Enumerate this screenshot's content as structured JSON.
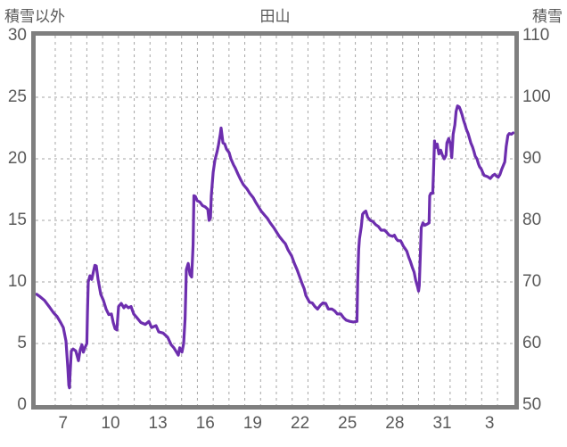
{
  "header": {
    "left_axis_title": "積雪以外",
    "chart_title": "田山",
    "right_axis_title": "積雪"
  },
  "colors": {
    "line": "#6D2EAE",
    "plot_border": "#7f7f7f",
    "gridline": "#a6a6a6",
    "text": "#595959",
    "background": "#ffffff"
  },
  "chart_data": {
    "type": "line",
    "title": "田山",
    "station": "田山",
    "grid": true,
    "x_axis": {
      "unit": "day of month (December into January)",
      "range_days": [
        5.76,
        36.07
      ],
      "day_gridlines_from": 7,
      "day_gridlines_to": 35,
      "tick_labels": [
        "7",
        "10",
        "13",
        "16",
        "19",
        "22",
        "25",
        "28",
        "31",
        "3"
      ],
      "tick_day_positions": [
        7.5,
        10.5,
        13.5,
        16.5,
        19.5,
        22.5,
        25.5,
        28.5,
        31.5,
        34.5
      ]
    },
    "y_axis_left": {
      "title": "積雪以外",
      "min": 0,
      "max": 30,
      "ticks": [
        0,
        5,
        10,
        15,
        20,
        25,
        30
      ]
    },
    "y_axis_right": {
      "title": "積雪",
      "min": 50,
      "max": 110,
      "ticks": [
        50,
        60,
        70,
        80,
        90,
        100,
        110
      ]
    },
    "series": [
      {
        "name": "積雪",
        "axis": "right",
        "color": "#6D2EAE",
        "points": [
          [
            5.82,
            68
          ],
          [
            6.04,
            67.6
          ],
          [
            6.32,
            67
          ],
          [
            6.61,
            66
          ],
          [
            6.89,
            65
          ],
          [
            7.11,
            64.4
          ],
          [
            7.34,
            63.4
          ],
          [
            7.51,
            62.6
          ],
          [
            7.68,
            60.4
          ],
          [
            7.8,
            56
          ],
          [
            7.86,
            53.2
          ],
          [
            7.9,
            52.8
          ],
          [
            7.94,
            55
          ],
          [
            8.02,
            58.8
          ],
          [
            8.13,
            59.1
          ],
          [
            8.3,
            58.8
          ],
          [
            8.47,
            57.2
          ],
          [
            8.58,
            59
          ],
          [
            8.69,
            59.8
          ],
          [
            8.78,
            58.6
          ],
          [
            8.86,
            59.2
          ],
          [
            9.0,
            60
          ],
          [
            9.04,
            65
          ],
          [
            9.09,
            70
          ],
          [
            9.2,
            71
          ],
          [
            9.31,
            70.4
          ],
          [
            9.43,
            71.8
          ],
          [
            9.51,
            72.7
          ],
          [
            9.6,
            72.6
          ],
          [
            9.71,
            70.4
          ],
          [
            9.88,
            68
          ],
          [
            10.05,
            67
          ],
          [
            10.22,
            65.6
          ],
          [
            10.39,
            64.7
          ],
          [
            10.56,
            64.8
          ],
          [
            10.67,
            63.4
          ],
          [
            10.79,
            62.4
          ],
          [
            10.9,
            62.2
          ],
          [
            11.01,
            66
          ],
          [
            11.18,
            66.5
          ],
          [
            11.35,
            65.8
          ],
          [
            11.46,
            66.2
          ],
          [
            11.63,
            65.8
          ],
          [
            11.8,
            66
          ],
          [
            11.97,
            64.8
          ],
          [
            12.2,
            64.1
          ],
          [
            12.42,
            63.4
          ],
          [
            12.7,
            63.1
          ],
          [
            12.93,
            63.6
          ],
          [
            13.1,
            62.6
          ],
          [
            13.38,
            62.9
          ],
          [
            13.55,
            61.9
          ],
          [
            13.83,
            61.7
          ],
          [
            14.12,
            61
          ],
          [
            14.34,
            59.8
          ],
          [
            14.51,
            59.3
          ],
          [
            14.68,
            58.6
          ],
          [
            14.79,
            58.1
          ],
          [
            14.88,
            59.3
          ],
          [
            15.02,
            58.6
          ],
          [
            15.13,
            60
          ],
          [
            15.22,
            64
          ],
          [
            15.27,
            69
          ],
          [
            15.3,
            72
          ],
          [
            15.42,
            73
          ],
          [
            15.53,
            71.2
          ],
          [
            15.64,
            70.8
          ],
          [
            15.73,
            76
          ],
          [
            15.78,
            84
          ],
          [
            15.87,
            83.9
          ],
          [
            15.98,
            83.2
          ],
          [
            16.15,
            83
          ],
          [
            16.32,
            82.4
          ],
          [
            16.49,
            82.2
          ],
          [
            16.66,
            81.8
          ],
          [
            16.74,
            80
          ],
          [
            16.83,
            80.4
          ],
          [
            16.88,
            84
          ],
          [
            17.0,
            87.8
          ],
          [
            17.11,
            89.8
          ],
          [
            17.25,
            91.2
          ],
          [
            17.33,
            92.2
          ],
          [
            17.45,
            94
          ],
          [
            17.5,
            95
          ],
          [
            17.62,
            92.6
          ],
          [
            17.73,
            92.4
          ],
          [
            17.84,
            91.6
          ],
          [
            18.01,
            91
          ],
          [
            18.12,
            90
          ],
          [
            18.29,
            89
          ],
          [
            18.4,
            88.5
          ],
          [
            18.57,
            87.5
          ],
          [
            18.74,
            86.6
          ],
          [
            18.91,
            85.8
          ],
          [
            19.14,
            85.1
          ],
          [
            19.31,
            84.4
          ],
          [
            19.53,
            83.7
          ],
          [
            19.7,
            82.9
          ],
          [
            19.87,
            82.2
          ],
          [
            20.04,
            81.5
          ],
          [
            20.27,
            80.8
          ],
          [
            20.44,
            80.3
          ],
          [
            20.61,
            79.6
          ],
          [
            20.84,
            78.8
          ],
          [
            21.01,
            78.1
          ],
          [
            21.18,
            77.4
          ],
          [
            21.4,
            76.7
          ],
          [
            21.57,
            76.2
          ],
          [
            21.74,
            75.2
          ],
          [
            21.97,
            74.2
          ],
          [
            22.14,
            73
          ],
          [
            22.31,
            72
          ],
          [
            22.48,
            70.8
          ],
          [
            22.65,
            69.6
          ],
          [
            22.76,
            68.9
          ],
          [
            22.87,
            67.8
          ],
          [
            22.99,
            67.2
          ],
          [
            23.1,
            66.7
          ],
          [
            23.27,
            66.6
          ],
          [
            23.44,
            66
          ],
          [
            23.61,
            65.6
          ],
          [
            23.78,
            66.2
          ],
          [
            23.95,
            66.6
          ],
          [
            24.12,
            66.5
          ],
          [
            24.29,
            65.6
          ],
          [
            24.52,
            65.6
          ],
          [
            24.69,
            65.3
          ],
          [
            24.86,
            64.8
          ],
          [
            25.08,
            64.8
          ],
          [
            25.25,
            64.2
          ],
          [
            25.42,
            63.8
          ],
          [
            25.65,
            63.6
          ],
          [
            25.87,
            63.5
          ],
          [
            26.1,
            63.6
          ],
          [
            26.15,
            70
          ],
          [
            26.21,
            75.2
          ],
          [
            26.26,
            77
          ],
          [
            26.38,
            79
          ],
          [
            26.46,
            81
          ],
          [
            26.55,
            81.3
          ],
          [
            26.66,
            81.5
          ],
          [
            26.78,
            80.5
          ],
          [
            26.95,
            80
          ],
          [
            27.12,
            79.8
          ],
          [
            27.29,
            79.3
          ],
          [
            27.46,
            79
          ],
          [
            27.63,
            78.4
          ],
          [
            27.85,
            78.4
          ],
          [
            27.97,
            78.1
          ],
          [
            28.14,
            77.6
          ],
          [
            28.36,
            77.4
          ],
          [
            28.47,
            77.6
          ],
          [
            28.59,
            77
          ],
          [
            28.7,
            76.7
          ],
          [
            28.87,
            76.7
          ],
          [
            29.04,
            75.8
          ],
          [
            29.15,
            75.4
          ],
          [
            29.26,
            75
          ],
          [
            29.38,
            74
          ],
          [
            29.49,
            73.3
          ],
          [
            29.6,
            72.4
          ],
          [
            29.72,
            71.6
          ],
          [
            29.83,
            70.2
          ],
          [
            29.94,
            69.2
          ],
          [
            30.0,
            68.5
          ],
          [
            30.05,
            69.4
          ],
          [
            30.11,
            74
          ],
          [
            30.17,
            78.8
          ],
          [
            30.28,
            79.6
          ],
          [
            30.39,
            79.2
          ],
          [
            30.56,
            79.4
          ],
          [
            30.67,
            79.6
          ],
          [
            30.71,
            84
          ],
          [
            30.78,
            84.4
          ],
          [
            30.9,
            84.4
          ],
          [
            30.95,
            88
          ],
          [
            31.01,
            92.9
          ],
          [
            31.06,
            91.8
          ],
          [
            31.18,
            92.4
          ],
          [
            31.29,
            90.8
          ],
          [
            31.4,
            91.4
          ],
          [
            31.51,
            90.6
          ],
          [
            31.63,
            90
          ],
          [
            31.74,
            90.6
          ],
          [
            31.8,
            92.6
          ],
          [
            31.91,
            93.3
          ],
          [
            32.02,
            92.4
          ],
          [
            32.1,
            90.2
          ],
          [
            32.19,
            94
          ],
          [
            32.3,
            95.5
          ],
          [
            32.38,
            97.7
          ],
          [
            32.47,
            98.6
          ],
          [
            32.58,
            98.4
          ],
          [
            32.66,
            97.9
          ],
          [
            32.75,
            97.2
          ],
          [
            32.86,
            96.2
          ],
          [
            32.95,
            95.5
          ],
          [
            33.03,
            94.8
          ],
          [
            33.14,
            94.1
          ],
          [
            33.23,
            93.3
          ],
          [
            33.31,
            92.6
          ],
          [
            33.42,
            91.9
          ],
          [
            33.51,
            91.2
          ],
          [
            33.59,
            90.4
          ],
          [
            33.7,
            90
          ],
          [
            33.79,
            89.2
          ],
          [
            33.87,
            88.7
          ],
          [
            33.98,
            88.3
          ],
          [
            34.06,
            87.8
          ],
          [
            34.15,
            87.3
          ],
          [
            34.26,
            87.2
          ],
          [
            34.37,
            87.1
          ],
          [
            34.54,
            86.8
          ],
          [
            34.71,
            87.3
          ],
          [
            34.82,
            87.5
          ],
          [
            34.93,
            87.2
          ],
          [
            35.04,
            87
          ],
          [
            35.15,
            87.4
          ],
          [
            35.27,
            88.3
          ],
          [
            35.38,
            89
          ],
          [
            35.46,
            89.5
          ],
          [
            35.55,
            92
          ],
          [
            35.66,
            93.8
          ],
          [
            35.74,
            94.1
          ],
          [
            35.88,
            94
          ],
          [
            35.99,
            94.2
          ]
        ]
      }
    ]
  }
}
